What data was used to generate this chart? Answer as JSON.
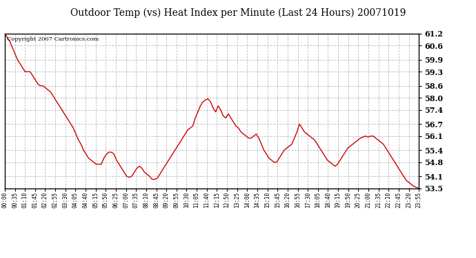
{
  "title": "Outdoor Temp (vs) Heat Index per Minute (Last 24 Hours) 20071019",
  "copyright_text": "Copyright 2007 Cartronics.com",
  "line_color": "#cc0000",
  "background_color": "#ffffff",
  "grid_color": "#bbbbbb",
  "ylim": [
    53.5,
    61.2
  ],
  "yticks": [
    53.5,
    54.1,
    54.8,
    55.4,
    56.1,
    56.7,
    57.4,
    58.0,
    58.6,
    59.3,
    59.9,
    60.6,
    61.2
  ],
  "xtick_labels": [
    "00:00",
    "00:35",
    "01:10",
    "01:45",
    "02:20",
    "02:55",
    "03:30",
    "04:05",
    "04:40",
    "05:15",
    "05:50",
    "06:25",
    "07:00",
    "07:35",
    "08:10",
    "08:45",
    "09:20",
    "09:55",
    "10:30",
    "11:05",
    "11:40",
    "12:15",
    "12:50",
    "13:25",
    "14:00",
    "14:35",
    "15:10",
    "15:45",
    "16:20",
    "16:55",
    "17:30",
    "18:05",
    "18:40",
    "19:15",
    "19:50",
    "20:25",
    "21:00",
    "21:35",
    "22:10",
    "22:45",
    "23:20",
    "23:55"
  ],
  "data_y": [
    61.2,
    61.0,
    60.8,
    60.5,
    60.2,
    59.9,
    59.7,
    59.5,
    59.3,
    59.3,
    59.3,
    59.1,
    58.9,
    58.7,
    58.6,
    58.6,
    58.5,
    58.4,
    58.3,
    58.1,
    57.9,
    57.7,
    57.5,
    57.3,
    57.1,
    56.9,
    56.7,
    56.5,
    56.2,
    55.9,
    55.7,
    55.4,
    55.2,
    55.0,
    54.9,
    54.8,
    54.7,
    54.7,
    54.7,
    55.0,
    55.2,
    55.3,
    55.3,
    55.2,
    54.9,
    54.7,
    54.5,
    54.3,
    54.1,
    54.05,
    54.1,
    54.3,
    54.5,
    54.6,
    54.5,
    54.3,
    54.2,
    54.1,
    53.95,
    53.95,
    54.0,
    54.2,
    54.4,
    54.6,
    54.8,
    55.0,
    55.2,
    55.4,
    55.6,
    55.8,
    56.0,
    56.2,
    56.4,
    56.5,
    56.6,
    57.0,
    57.3,
    57.6,
    57.8,
    57.9,
    57.95,
    57.8,
    57.5,
    57.3,
    57.6,
    57.4,
    57.1,
    57.0,
    57.2,
    57.0,
    56.8,
    56.6,
    56.5,
    56.3,
    56.2,
    56.1,
    56.0,
    56.0,
    56.1,
    56.2,
    56.0,
    55.7,
    55.4,
    55.2,
    55.0,
    54.9,
    54.8,
    54.8,
    55.0,
    55.2,
    55.4,
    55.5,
    55.6,
    55.7,
    56.0,
    56.3,
    56.7,
    56.5,
    56.3,
    56.2,
    56.1,
    56.0,
    55.9,
    55.7,
    55.5,
    55.3,
    55.1,
    54.9,
    54.8,
    54.7,
    54.6,
    54.7,
    54.9,
    55.1,
    55.3,
    55.5,
    55.6,
    55.7,
    55.8,
    55.9,
    56.0,
    56.05,
    56.1,
    56.05,
    56.1,
    56.1,
    56.0,
    55.9,
    55.8,
    55.7,
    55.5,
    55.3,
    55.1,
    54.9,
    54.7,
    54.5,
    54.3,
    54.1,
    53.9,
    53.8,
    53.7,
    53.6,
    53.55,
    53.5
  ],
  "figwidth": 6.9,
  "figheight": 3.75,
  "dpi": 100
}
